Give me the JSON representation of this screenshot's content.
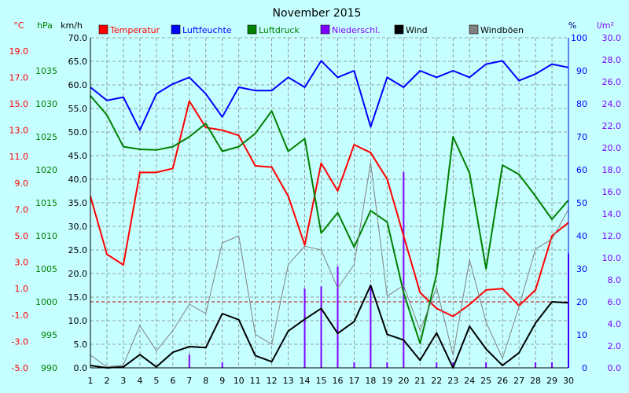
{
  "chart_data": {
    "type": "line",
    "title": "November 2015",
    "x": [
      1,
      2,
      3,
      4,
      5,
      6,
      7,
      8,
      9,
      10,
      11,
      12,
      13,
      14,
      15,
      16,
      17,
      18,
      19,
      20,
      21,
      22,
      23,
      24,
      25,
      26,
      27,
      28,
      29,
      30
    ],
    "axes": {
      "temperature": {
        "unit": "°C",
        "ticks": [
          "19.0",
          "17.0",
          "15.0",
          "13.0",
          "11.0",
          "9.0",
          "7.0",
          "5.0",
          "3.0",
          "1.0",
          "-1.0",
          "-3.0",
          "-5.0"
        ],
        "range": [
          -5,
          20
        ],
        "color": "#ff0000"
      },
      "pressure": {
        "unit": "hPa",
        "ticks": [
          "1035",
          "1030",
          "1025",
          "1020",
          "1015",
          "1010",
          "1005",
          "1000",
          "995",
          "990"
        ],
        "range": [
          990,
          1040
        ],
        "color": "#008000"
      },
      "wind": {
        "unit": "km/h",
        "ticks": [
          "70.0",
          "65.0",
          "60.0",
          "55.0",
          "50.0",
          "45.0",
          "40.0",
          "35.0",
          "30.0",
          "25.0",
          "20.0",
          "15.0",
          "10.0",
          "5.0",
          "0.0"
        ],
        "range": [
          0,
          70
        ],
        "color": "#000000"
      },
      "humidity": {
        "unit": "%",
        "ticks": [
          "100",
          "90",
          "80",
          "70",
          "60",
          "50",
          "40",
          "30",
          "20",
          "10",
          "0"
        ],
        "range": [
          0,
          100
        ],
        "color": "#0000ff"
      },
      "precipitation": {
        "unit": "l/m²",
        "ticks": [
          "30.0",
          "28.0",
          "26.0",
          "24.0",
          "22.0",
          "20.0",
          "18.0",
          "16.0",
          "14.0",
          "12.0",
          "10.0",
          "8.0",
          "6.0",
          "4.0",
          "2.0",
          "0.0"
        ],
        "range": [
          0,
          30
        ],
        "color": "#8000ff"
      }
    },
    "series": [
      {
        "name": "Temperatur",
        "axis": "temperature",
        "color": "#ff0000",
        "values": [
          8.0,
          3.6,
          2.8,
          9.8,
          9.8,
          10.1,
          15.2,
          13.2,
          13.0,
          12.6,
          10.3,
          10.2,
          8.0,
          4.3,
          10.5,
          8.4,
          11.9,
          11.3,
          9.3,
          5.0,
          0.7,
          -0.5,
          -1.1,
          -0.2,
          0.9,
          1.0,
          -0.3,
          0.9,
          5.0,
          6.0
        ]
      },
      {
        "name": "Luftfeuchte",
        "axis": "humidity",
        "color": "#0000ff",
        "values": [
          85,
          81,
          82,
          72,
          83,
          86,
          88,
          83,
          76,
          85,
          84,
          84,
          88,
          85,
          93,
          88,
          90,
          73,
          88,
          85,
          90,
          88,
          90,
          88,
          92,
          93,
          87,
          89,
          92,
          91
        ]
      },
      {
        "name": "Luftdruck",
        "axis": "pressure",
        "color": "#008000",
        "values": [
          1031.2,
          1028.3,
          1023.5,
          1023.1,
          1023.0,
          1023.5,
          1025.0,
          1027.0,
          1022.8,
          1023.5,
          1025.5,
          1028.9,
          1022.8,
          1024.7,
          1010.4,
          1013.5,
          1008.3,
          1013.8,
          1012.1,
          1001.4,
          993.7,
          1004.2,
          1025.0,
          1019.5,
          1005.0,
          1020.7,
          1019.3,
          1016.0,
          1012.5,
          1015.4
        ]
      },
      {
        "name": "Niederschl.",
        "axis": "precipitation",
        "color": "#8000ff",
        "type": "bar",
        "values": [
          0,
          0,
          0,
          0,
          0,
          0,
          1.2,
          0,
          0.5,
          0,
          0,
          0,
          0,
          7.2,
          7.4,
          9.2,
          0.5,
          7.4,
          0.5,
          17.8,
          0,
          0.5,
          0.5,
          0,
          0.5,
          0,
          0,
          0.5,
          0.5,
          10.4
        ]
      },
      {
        "name": "Wind",
        "axis": "wind",
        "color": "#000000",
        "values": [
          0.5,
          0,
          0.2,
          2.8,
          0.2,
          3.3,
          4.5,
          4.3,
          11.5,
          10.2,
          2.6,
          1.3,
          7.8,
          10.3,
          12.6,
          7.3,
          9.8,
          17.5,
          7.1,
          5.9,
          1.6,
          7.4,
          0,
          8.8,
          4.0,
          0.5,
          3.2,
          9.5,
          14.0,
          13.8
        ]
      },
      {
        "name": "Windböen",
        "axis": "wind",
        "color": "#808080",
        "values": [
          2.7,
          0.2,
          0.6,
          9.0,
          3.6,
          7.9,
          13.5,
          11.5,
          26.5,
          28.0,
          7.1,
          5.0,
          21.9,
          25.8,
          25.0,
          16.9,
          21.9,
          43.5,
          15.2,
          17.5,
          7.9,
          17.0,
          2.7,
          22.9,
          9.7,
          2.0,
          13.0,
          25.2,
          27.3,
          33.6
        ]
      }
    ],
    "reference_lines": [
      {
        "axis": "temperature",
        "value": 0,
        "color": "#c00000",
        "style": "dashed"
      }
    ],
    "grid": true,
    "legend_position": "top"
  }
}
